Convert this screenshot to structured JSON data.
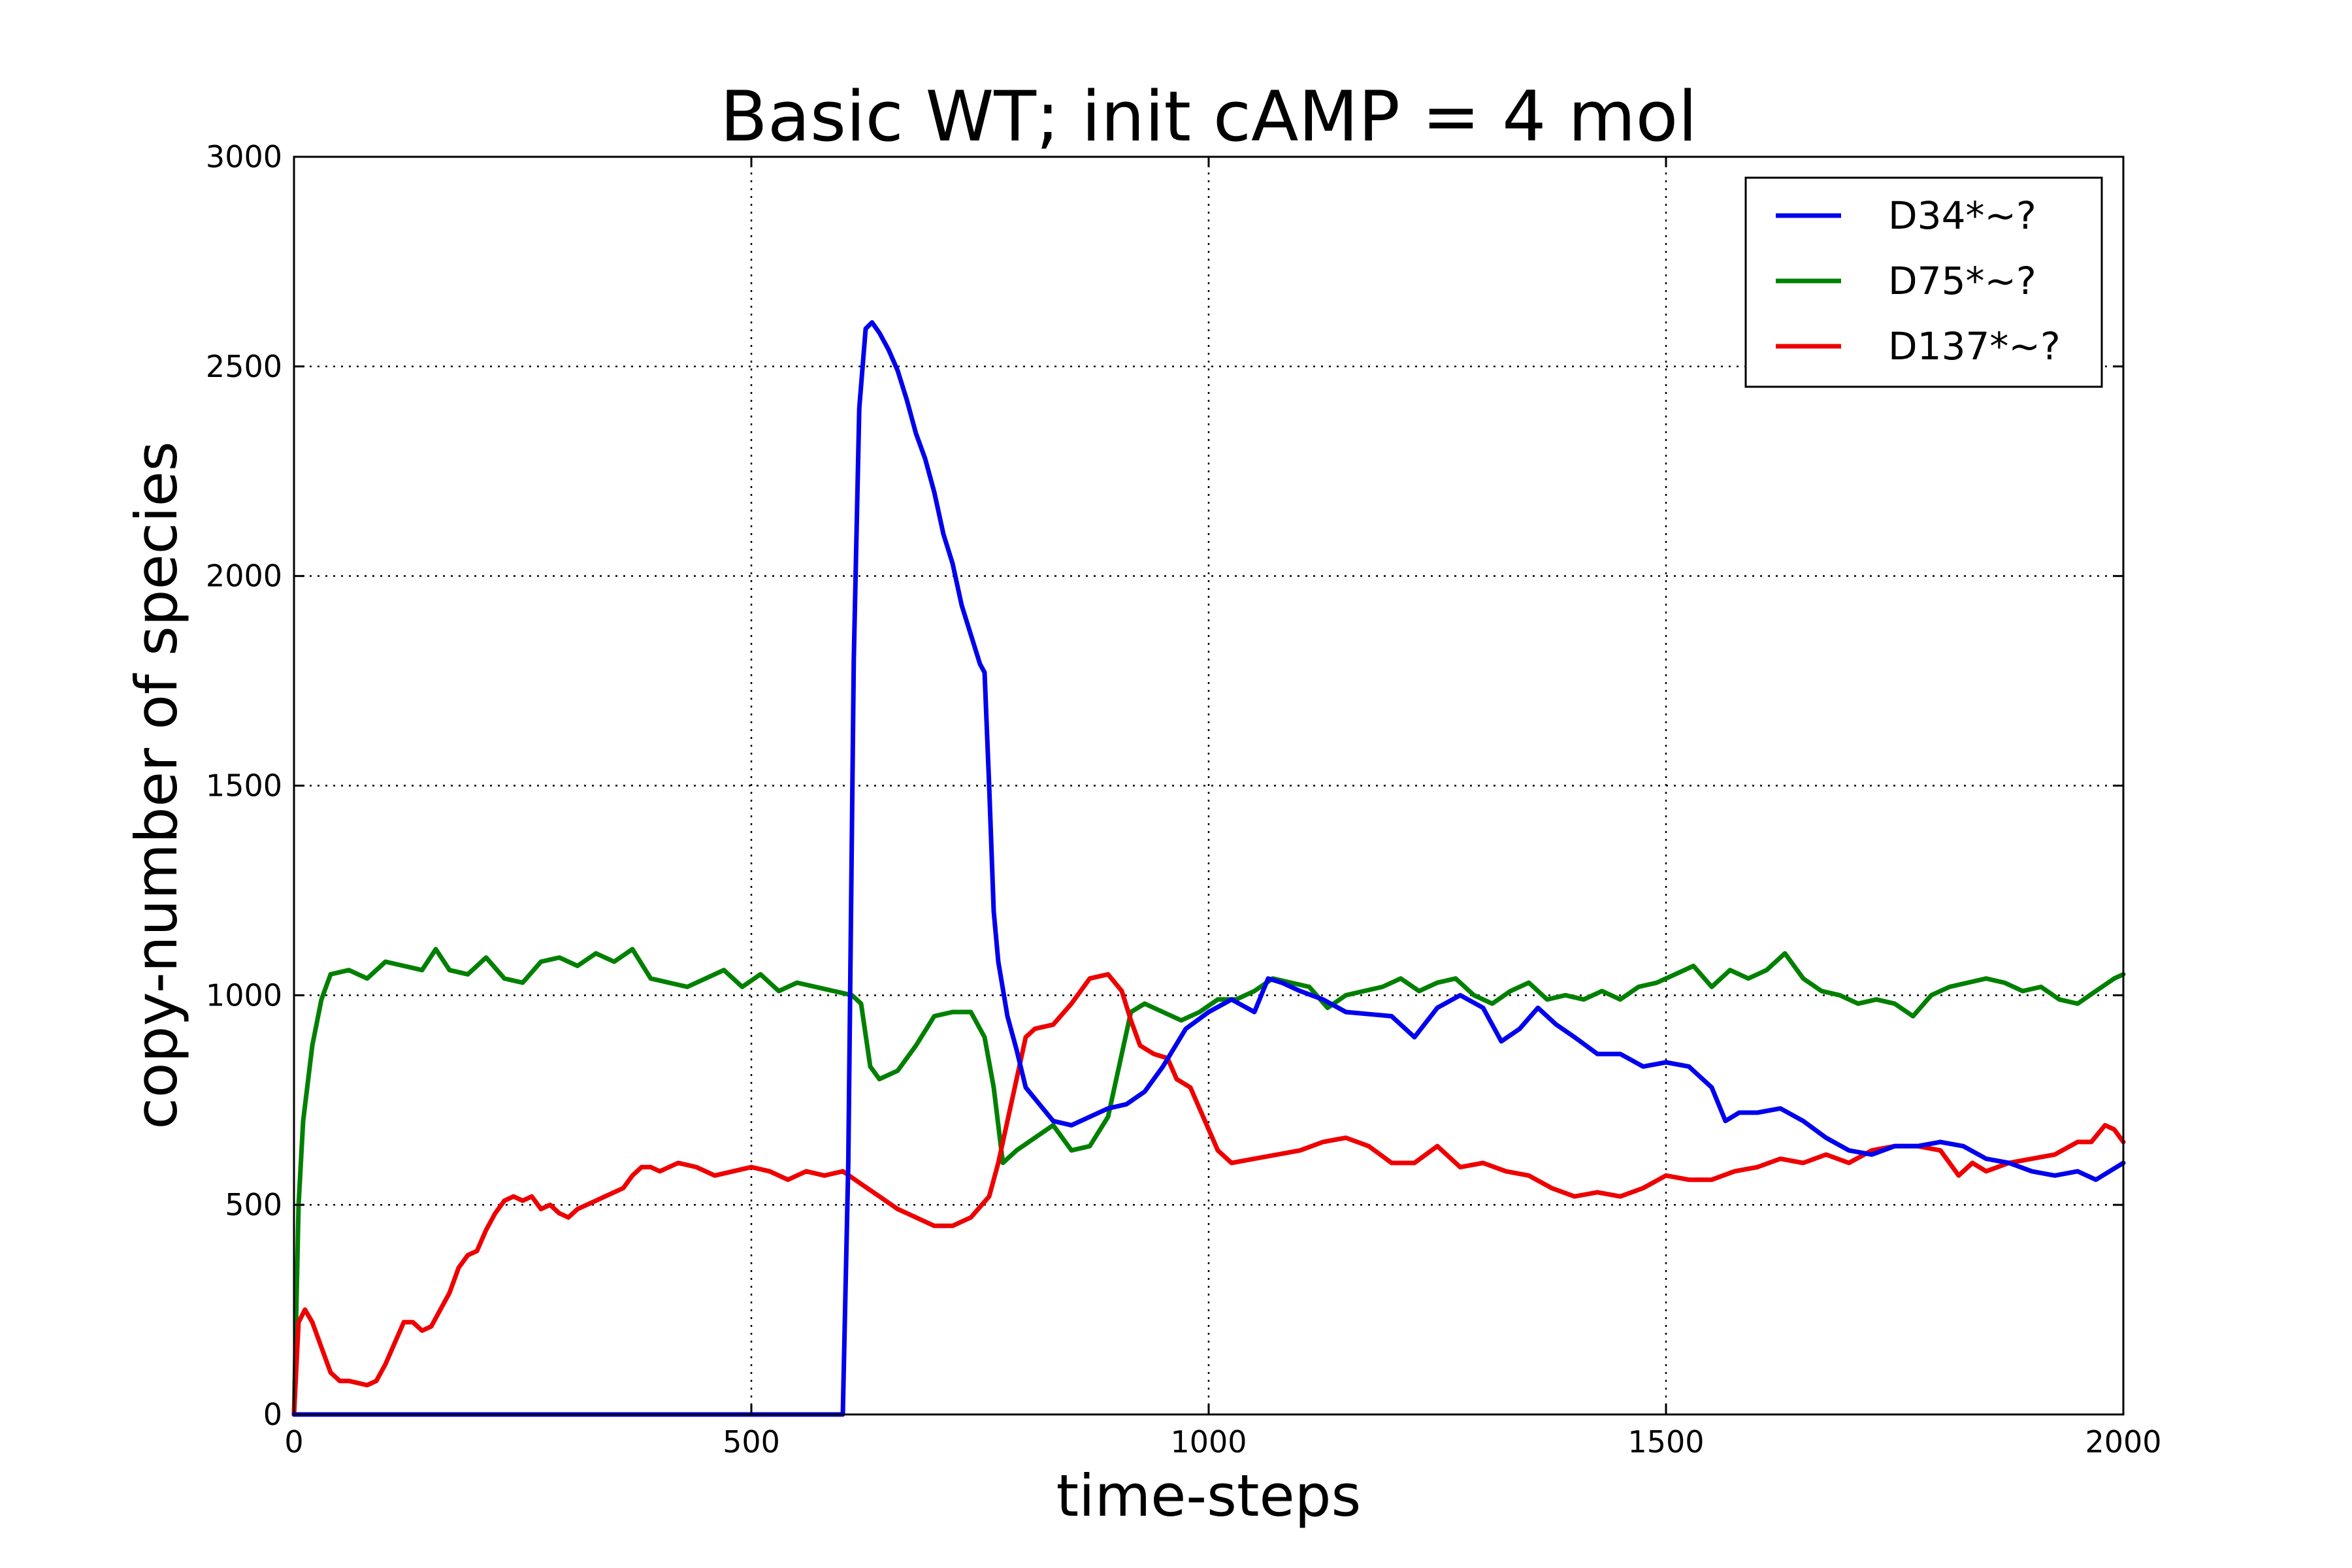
{
  "chart_data": {
    "type": "line",
    "title": "Basic WT; init cAMP = 4 mol",
    "xlabel": "time-steps",
    "ylabel": "copy-number of species",
    "xlim": [
      0,
      2000
    ],
    "ylim": [
      0,
      3000
    ],
    "xticks": [
      "0",
      "500",
      "1000",
      "1500",
      "2000"
    ],
    "yticks": [
      "0",
      "500",
      "1000",
      "1500",
      "2000",
      "2500",
      "3000"
    ],
    "grid": true,
    "legend_position": "top-right",
    "colors": {
      "D34": "#0000ee",
      "D75": "#008000",
      "D137": "#ee0000"
    },
    "series": [
      {
        "name": "D34*~?",
        "color": "#0000ee",
        "points": [
          [
            0,
            0
          ],
          [
            100,
            0
          ],
          [
            200,
            0
          ],
          [
            300,
            0
          ],
          [
            400,
            0
          ],
          [
            500,
            0
          ],
          [
            600,
            0
          ],
          [
            606,
            600
          ],
          [
            612,
            1800
          ],
          [
            618,
            2400
          ],
          [
            625,
            2590
          ],
          [
            632,
            2605
          ],
          [
            640,
            2580
          ],
          [
            650,
            2540
          ],
          [
            660,
            2490
          ],
          [
            670,
            2420
          ],
          [
            680,
            2340
          ],
          [
            690,
            2280
          ],
          [
            700,
            2200
          ],
          [
            710,
            2100
          ],
          [
            720,
            2030
          ],
          [
            730,
            1930
          ],
          [
            740,
            1860
          ],
          [
            750,
            1790
          ],
          [
            755,
            1770
          ],
          [
            760,
            1500
          ],
          [
            765,
            1200
          ],
          [
            770,
            1080
          ],
          [
            780,
            950
          ],
          [
            790,
            870
          ],
          [
            800,
            780
          ],
          [
            815,
            740
          ],
          [
            830,
            700
          ],
          [
            850,
            690
          ],
          [
            870,
            710
          ],
          [
            890,
            730
          ],
          [
            910,
            740
          ],
          [
            930,
            770
          ],
          [
            950,
            830
          ],
          [
            975,
            920
          ],
          [
            1000,
            960
          ],
          [
            1025,
            990
          ],
          [
            1050,
            960
          ],
          [
            1065,
            1040
          ],
          [
            1080,
            1030
          ],
          [
            1100,
            1010
          ],
          [
            1125,
            990
          ],
          [
            1150,
            960
          ],
          [
            1175,
            955
          ],
          [
            1200,
            950
          ],
          [
            1225,
            900
          ],
          [
            1250,
            970
          ],
          [
            1275,
            1000
          ],
          [
            1300,
            970
          ],
          [
            1320,
            890
          ],
          [
            1340,
            920
          ],
          [
            1360,
            970
          ],
          [
            1380,
            930
          ],
          [
            1400,
            900
          ],
          [
            1425,
            860
          ],
          [
            1450,
            860
          ],
          [
            1475,
            830
          ],
          [
            1500,
            840
          ],
          [
            1525,
            830
          ],
          [
            1550,
            780
          ],
          [
            1565,
            700
          ],
          [
            1580,
            720
          ],
          [
            1600,
            720
          ],
          [
            1625,
            730
          ],
          [
            1650,
            700
          ],
          [
            1675,
            660
          ],
          [
            1700,
            630
          ],
          [
            1725,
            620
          ],
          [
            1750,
            640
          ],
          [
            1775,
            640
          ],
          [
            1800,
            650
          ],
          [
            1825,
            640
          ],
          [
            1850,
            610
          ],
          [
            1875,
            600
          ],
          [
            1900,
            580
          ],
          [
            1925,
            570
          ],
          [
            1950,
            580
          ],
          [
            1970,
            560
          ],
          [
            1985,
            580
          ],
          [
            2000,
            600
          ]
        ]
      },
      {
        "name": "D75*~?",
        "color": "#008000",
        "points": [
          [
            0,
            0
          ],
          [
            5,
            500
          ],
          [
            10,
            700
          ],
          [
            20,
            880
          ],
          [
            30,
            990
          ],
          [
            40,
            1050
          ],
          [
            60,
            1060
          ],
          [
            80,
            1040
          ],
          [
            100,
            1080
          ],
          [
            120,
            1070
          ],
          [
            140,
            1060
          ],
          [
            155,
            1110
          ],
          [
            170,
            1060
          ],
          [
            190,
            1050
          ],
          [
            210,
            1090
          ],
          [
            230,
            1040
          ],
          [
            250,
            1030
          ],
          [
            270,
            1080
          ],
          [
            290,
            1090
          ],
          [
            310,
            1070
          ],
          [
            330,
            1100
          ],
          [
            350,
            1080
          ],
          [
            370,
            1110
          ],
          [
            390,
            1040
          ],
          [
            410,
            1030
          ],
          [
            430,
            1020
          ],
          [
            450,
            1040
          ],
          [
            470,
            1060
          ],
          [
            490,
            1020
          ],
          [
            510,
            1050
          ],
          [
            530,
            1010
          ],
          [
            550,
            1030
          ],
          [
            570,
            1020
          ],
          [
            590,
            1010
          ],
          [
            610,
            1000
          ],
          [
            620,
            980
          ],
          [
            630,
            830
          ],
          [
            640,
            800
          ],
          [
            660,
            820
          ],
          [
            680,
            880
          ],
          [
            700,
            950
          ],
          [
            720,
            960
          ],
          [
            740,
            960
          ],
          [
            755,
            900
          ],
          [
            765,
            780
          ],
          [
            775,
            600
          ],
          [
            790,
            630
          ],
          [
            810,
            660
          ],
          [
            830,
            690
          ],
          [
            850,
            630
          ],
          [
            870,
            640
          ],
          [
            890,
            710
          ],
          [
            905,
            860
          ],
          [
            915,
            960
          ],
          [
            930,
            980
          ],
          [
            950,
            960
          ],
          [
            970,
            940
          ],
          [
            990,
            960
          ],
          [
            1010,
            990
          ],
          [
            1030,
            990
          ],
          [
            1050,
            1010
          ],
          [
            1070,
            1040
          ],
          [
            1090,
            1030
          ],
          [
            1110,
            1020
          ],
          [
            1130,
            970
          ],
          [
            1150,
            1000
          ],
          [
            1170,
            1010
          ],
          [
            1190,
            1020
          ],
          [
            1210,
            1040
          ],
          [
            1230,
            1010
          ],
          [
            1250,
            1030
          ],
          [
            1270,
            1040
          ],
          [
            1290,
            1000
          ],
          [
            1310,
            980
          ],
          [
            1330,
            1010
          ],
          [
            1350,
            1030
          ],
          [
            1370,
            990
          ],
          [
            1390,
            1000
          ],
          [
            1410,
            990
          ],
          [
            1430,
            1010
          ],
          [
            1450,
            990
          ],
          [
            1470,
            1020
          ],
          [
            1490,
            1030
          ],
          [
            1510,
            1050
          ],
          [
            1530,
            1070
          ],
          [
            1550,
            1020
          ],
          [
            1570,
            1060
          ],
          [
            1590,
            1040
          ],
          [
            1610,
            1060
          ],
          [
            1630,
            1100
          ],
          [
            1650,
            1040
          ],
          [
            1670,
            1010
          ],
          [
            1690,
            1000
          ],
          [
            1710,
            980
          ],
          [
            1730,
            990
          ],
          [
            1750,
            980
          ],
          [
            1770,
            950
          ],
          [
            1790,
            1000
          ],
          [
            1810,
            1020
          ],
          [
            1830,
            1030
          ],
          [
            1850,
            1040
          ],
          [
            1870,
            1030
          ],
          [
            1890,
            1010
          ],
          [
            1910,
            1020
          ],
          [
            1930,
            990
          ],
          [
            1950,
            980
          ],
          [
            1970,
            1010
          ],
          [
            1990,
            1040
          ],
          [
            2000,
            1050
          ]
        ]
      },
      {
        "name": "D137*~?",
        "color": "#ee0000",
        "points": [
          [
            0,
            0
          ],
          [
            5,
            220
          ],
          [
            12,
            250
          ],
          [
            20,
            220
          ],
          [
            30,
            160
          ],
          [
            40,
            100
          ],
          [
            50,
            80
          ],
          [
            60,
            80
          ],
          [
            70,
            75
          ],
          [
            80,
            70
          ],
          [
            90,
            80
          ],
          [
            100,
            120
          ],
          [
            110,
            170
          ],
          [
            120,
            220
          ],
          [
            130,
            220
          ],
          [
            140,
            200
          ],
          [
            150,
            210
          ],
          [
            160,
            250
          ],
          [
            170,
            290
          ],
          [
            180,
            350
          ],
          [
            190,
            380
          ],
          [
            200,
            390
          ],
          [
            210,
            440
          ],
          [
            220,
            480
          ],
          [
            230,
            510
          ],
          [
            240,
            520
          ],
          [
            250,
            510
          ],
          [
            260,
            520
          ],
          [
            270,
            490
          ],
          [
            280,
            500
          ],
          [
            290,
            480
          ],
          [
            300,
            470
          ],
          [
            310,
            490
          ],
          [
            320,
            500
          ],
          [
            330,
            510
          ],
          [
            340,
            520
          ],
          [
            350,
            530
          ],
          [
            360,
            540
          ],
          [
            370,
            570
          ],
          [
            380,
            590
          ],
          [
            390,
            590
          ],
          [
            400,
            580
          ],
          [
            420,
            600
          ],
          [
            440,
            590
          ],
          [
            460,
            570
          ],
          [
            480,
            580
          ],
          [
            500,
            590
          ],
          [
            520,
            580
          ],
          [
            540,
            560
          ],
          [
            560,
            580
          ],
          [
            580,
            570
          ],
          [
            600,
            580
          ],
          [
            620,
            550
          ],
          [
            640,
            520
          ],
          [
            660,
            490
          ],
          [
            680,
            470
          ],
          [
            700,
            450
          ],
          [
            720,
            450
          ],
          [
            740,
            470
          ],
          [
            760,
            520
          ],
          [
            770,
            600
          ],
          [
            780,
            700
          ],
          [
            790,
            800
          ],
          [
            800,
            900
          ],
          [
            810,
            920
          ],
          [
            830,
            930
          ],
          [
            850,
            980
          ],
          [
            870,
            1040
          ],
          [
            890,
            1050
          ],
          [
            905,
            1010
          ],
          [
            915,
            940
          ],
          [
            925,
            880
          ],
          [
            940,
            860
          ],
          [
            955,
            850
          ],
          [
            965,
            800
          ],
          [
            980,
            780
          ],
          [
            990,
            730
          ],
          [
            1000,
            680
          ],
          [
            1010,
            630
          ],
          [
            1025,
            600
          ],
          [
            1050,
            610
          ],
          [
            1075,
            620
          ],
          [
            1100,
            630
          ],
          [
            1125,
            650
          ],
          [
            1150,
            660
          ],
          [
            1175,
            640
          ],
          [
            1200,
            600
          ],
          [
            1225,
            600
          ],
          [
            1250,
            640
          ],
          [
            1275,
            590
          ],
          [
            1300,
            600
          ],
          [
            1325,
            580
          ],
          [
            1350,
            570
          ],
          [
            1375,
            540
          ],
          [
            1400,
            520
          ],
          [
            1425,
            530
          ],
          [
            1450,
            520
          ],
          [
            1475,
            540
          ],
          [
            1500,
            570
          ],
          [
            1525,
            560
          ],
          [
            1550,
            560
          ],
          [
            1575,
            580
          ],
          [
            1600,
            590
          ],
          [
            1625,
            610
          ],
          [
            1650,
            600
          ],
          [
            1675,
            620
          ],
          [
            1700,
            600
          ],
          [
            1725,
            630
          ],
          [
            1750,
            640
          ],
          [
            1775,
            640
          ],
          [
            1800,
            630
          ],
          [
            1820,
            570
          ],
          [
            1835,
            600
          ],
          [
            1850,
            580
          ],
          [
            1875,
            600
          ],
          [
            1900,
            610
          ],
          [
            1925,
            620
          ],
          [
            1950,
            650
          ],
          [
            1965,
            650
          ],
          [
            1980,
            690
          ],
          [
            1990,
            680
          ],
          [
            2000,
            650
          ]
        ]
      }
    ]
  }
}
